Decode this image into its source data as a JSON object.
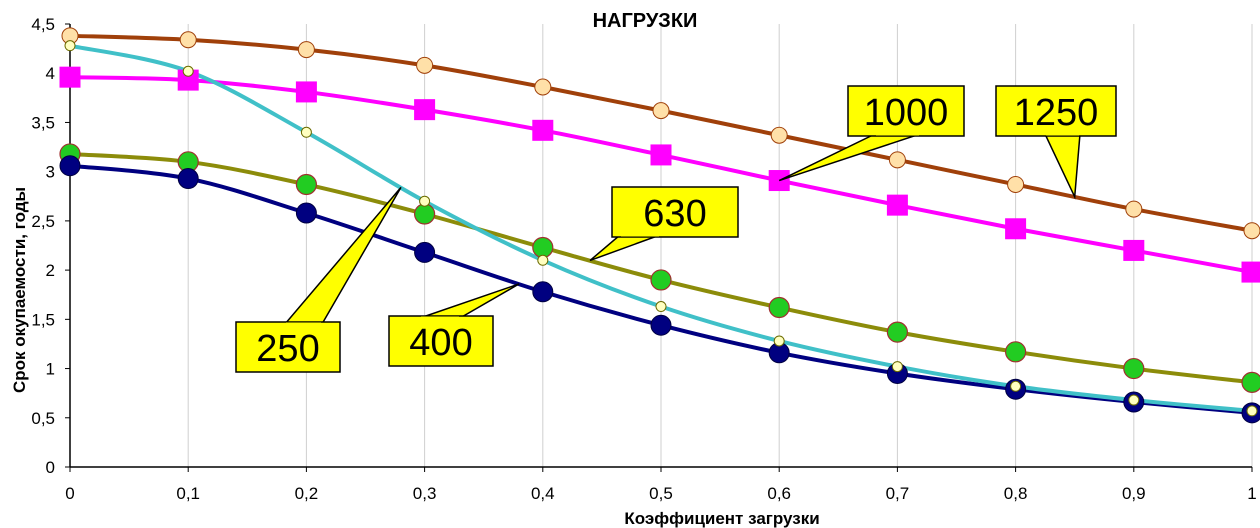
{
  "chart_data": {
    "type": "line",
    "title": "НАГРУЗКИ",
    "xlabel": "Коэффициент загрузки",
    "ylabel": "Срок окупаемости, годы",
    "x": [
      0,
      0.1,
      0.2,
      0.3,
      0.4,
      0.5,
      0.6,
      0.7,
      0.8,
      0.9,
      1
    ],
    "x_tick_labels": [
      "0",
      "0,1",
      "0,2",
      "0,3",
      "0,4",
      "0,5",
      "0,6",
      "0,7",
      "0,8",
      "0,9",
      "1"
    ],
    "y_ticks": [
      0,
      0.5,
      1,
      1.5,
      2,
      2.5,
      3,
      3.5,
      4,
      4.5
    ],
    "y_tick_labels": [
      "0",
      "0,5",
      "1",
      "1,5",
      "2",
      "2,5",
      "3",
      "3,5",
      "4",
      "4,5"
    ],
    "xlim": [
      0,
      1
    ],
    "ylim": [
      0,
      4.5
    ],
    "grid": "vertical",
    "legend": "none",
    "series": [
      {
        "name": "1250",
        "color": "#a0400a",
        "marker": "circle",
        "marker_color": "#ffe0a8",
        "values": [
          4.38,
          4.34,
          4.24,
          4.08,
          3.86,
          3.62,
          3.37,
          3.12,
          2.87,
          2.62,
          2.4
        ]
      },
      {
        "name": "1000",
        "color": "#ff00ff",
        "marker": "square",
        "marker_color": "#ff00ff",
        "values": [
          3.96,
          3.93,
          3.81,
          3.63,
          3.42,
          3.17,
          2.91,
          2.66,
          2.42,
          2.2,
          1.98
        ]
      },
      {
        "name": "630",
        "color": "#8c8c0a",
        "marker": "circle",
        "marker_color": "#22cc22",
        "values": [
          3.18,
          3.1,
          2.87,
          2.57,
          2.23,
          1.9,
          1.62,
          1.37,
          1.17,
          1.0,
          0.86
        ]
      },
      {
        "name": "400",
        "color": "#000080",
        "marker": "circle",
        "marker_color": "#000080",
        "values": [
          3.06,
          2.93,
          2.58,
          2.18,
          1.78,
          1.44,
          1.16,
          0.95,
          0.79,
          0.66,
          0.55
        ]
      },
      {
        "name": "250",
        "color": "#40c0c8",
        "marker": "circle",
        "marker_color": "#ffffc0",
        "values": [
          4.28,
          4.02,
          3.4,
          2.7,
          2.1,
          1.63,
          1.28,
          1.02,
          0.82,
          0.68,
          0.57
        ]
      }
    ],
    "callouts": [
      {
        "text": "1250",
        "series": "1250",
        "target_x": 0.85
      },
      {
        "text": "1000",
        "series": "1000",
        "target_x": 0.6
      },
      {
        "text": "630",
        "series": "630",
        "target_x": 0.44
      },
      {
        "text": "400",
        "series": "400",
        "target_x": 0.38
      },
      {
        "text": "250",
        "series": "250",
        "target_x": 0.28
      }
    ]
  }
}
